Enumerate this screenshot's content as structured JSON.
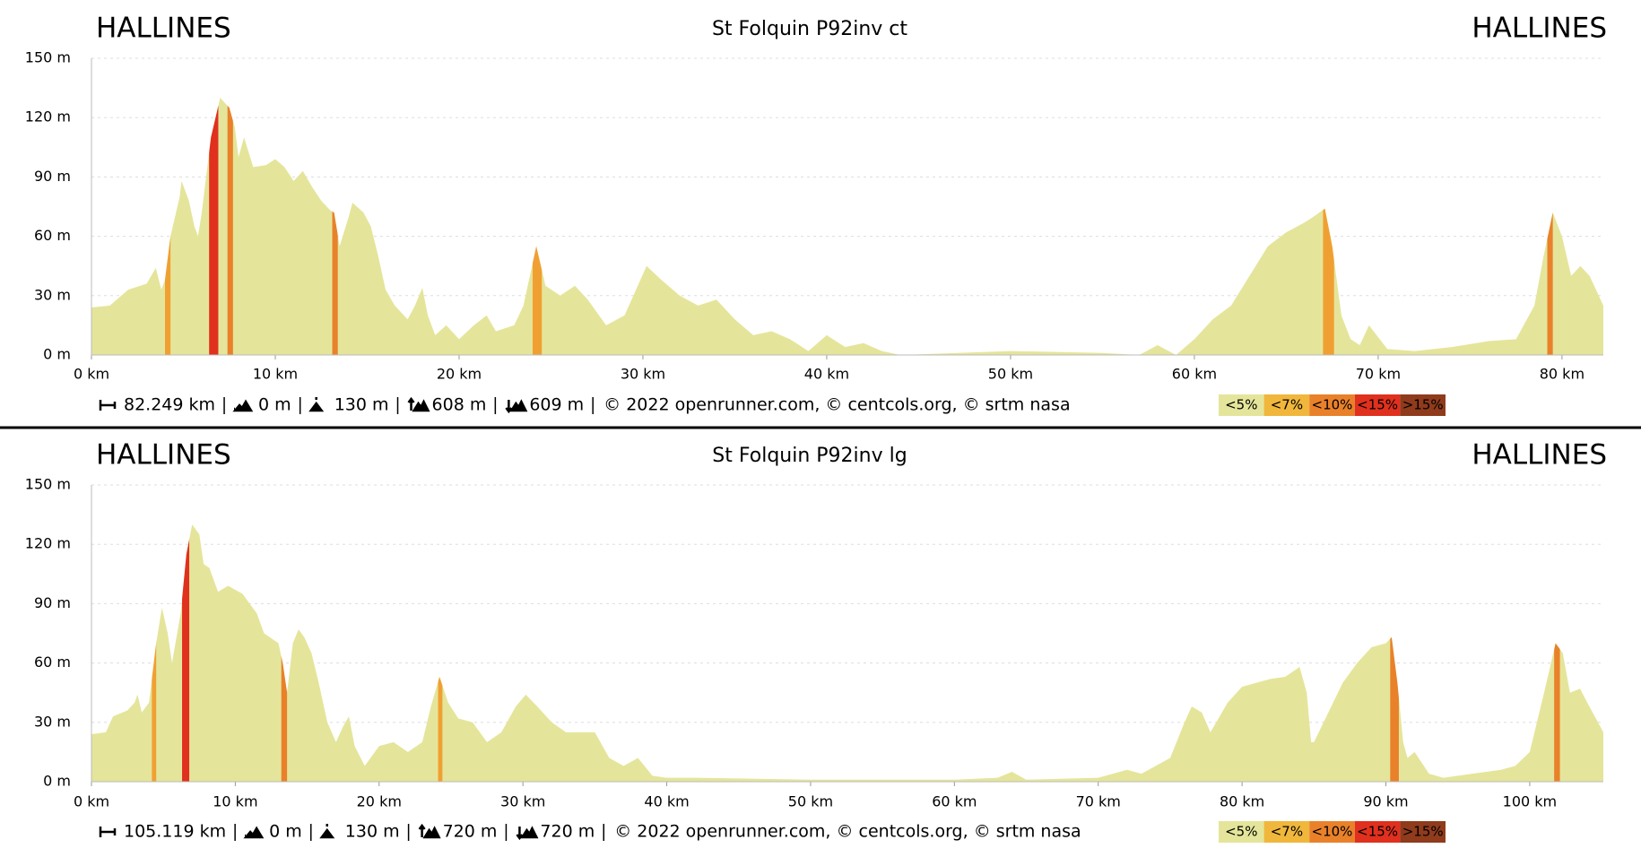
{
  "chart_data": [
    {
      "type": "area",
      "title": "St Folquin P92inv ct",
      "start_label": "HALLINES",
      "end_label": "HALLINES",
      "color": "#e4e59a",
      "x": [
        0,
        1,
        2,
        3,
        3.5,
        3.8,
        4,
        4.3,
        4.8,
        4.9,
        5.3,
        5.6,
        5.8,
        6.0,
        6.5,
        7.0,
        7.5,
        7.8,
        8.0,
        8.3,
        8.8,
        9.5,
        10,
        10.5,
        11,
        11.5,
        12,
        12.5,
        13.0,
        13.2,
        13.5,
        14.0,
        14.2,
        14.8,
        15.2,
        15.6,
        16,
        16.5,
        17.2,
        17.6,
        18,
        18.3,
        18.7,
        19.3,
        20,
        20.8,
        21.5,
        22,
        23,
        23.5,
        24.2,
        24.7,
        25.5,
        26.3,
        27,
        28,
        29,
        30.2,
        31,
        32,
        33,
        34,
        35,
        36,
        37,
        38,
        39,
        40,
        41,
        42,
        43,
        44,
        50,
        55,
        57,
        58,
        59,
        60,
        61,
        62,
        63,
        64,
        65,
        66,
        66.5,
        67.1,
        67.5,
        68,
        68.5,
        69,
        69.5,
        70.5,
        72,
        74,
        76,
        77.5,
        78.5,
        79,
        79.5,
        80,
        80.5,
        81,
        81.5,
        82.249
      ],
      "values": [
        24,
        25,
        33,
        36,
        44,
        33,
        38,
        60,
        80,
        88,
        78,
        65,
        60,
        72,
        110,
        130,
        125,
        115,
        100,
        110,
        95,
        96,
        99,
        95,
        88,
        93,
        85,
        78,
        73,
        72,
        55,
        70,
        77,
        72,
        65,
        50,
        33,
        25,
        18,
        25,
        34,
        20,
        10,
        15,
        8,
        15,
        20,
        12,
        15,
        25,
        55,
        35,
        30,
        35,
        28,
        15,
        20,
        45,
        38,
        30,
        25,
        28,
        18,
        10,
        12,
        8,
        2,
        10,
        4,
        6,
        2,
        0,
        2,
        1,
        0,
        5,
        0,
        8,
        18,
        25,
        40,
        55,
        62,
        67,
        70,
        74,
        55,
        20,
        8,
        5,
        15,
        3,
        2,
        4,
        7,
        8,
        25,
        50,
        72,
        60,
        40,
        45,
        40,
        25
      ],
      "bands": [
        {
          "x": [
            4.0,
            4.3
          ],
          "color": "#f0a032"
        },
        {
          "x": [
            6.4,
            6.9
          ],
          "color": "#e0301e"
        },
        {
          "x": [
            7.4,
            7.7
          ],
          "color": "#e9812a"
        },
        {
          "x": [
            13.1,
            13.4
          ],
          "color": "#e9812a"
        },
        {
          "x": [
            24.0,
            24.5
          ],
          "color": "#f0a032"
        },
        {
          "x": [
            67.0,
            67.6
          ],
          "color": "#f0a032"
        },
        {
          "x": [
            79.2,
            79.5
          ],
          "color": "#e9812a"
        }
      ],
      "xlim": [
        0,
        82.249
      ],
      "ylim": [
        0,
        150
      ],
      "grid": true,
      "xticks": [
        {
          "value": 0,
          "label": "0 km"
        },
        {
          "value": 10,
          "label": "10 km"
        },
        {
          "value": 20,
          "label": "20 km"
        },
        {
          "value": 30,
          "label": "30 km"
        },
        {
          "value": 40,
          "label": "40 km"
        },
        {
          "value": 50,
          "label": "50 km"
        },
        {
          "value": 60,
          "label": "60 km"
        },
        {
          "value": 70,
          "label": "70 km"
        },
        {
          "value": 80,
          "label": "80 km"
        }
      ],
      "yticks": [
        {
          "value": 0,
          "label": "0 m"
        },
        {
          "value": 30,
          "label": "30 m"
        },
        {
          "value": 60,
          "label": "60 m"
        },
        {
          "value": 90,
          "label": "90 m"
        },
        {
          "value": 120,
          "label": "120 m"
        },
        {
          "value": 150,
          "label": "150 m"
        }
      ],
      "stats": [
        "82.249 km",
        "0 m",
        "130 m",
        "608 m",
        "609 m"
      ],
      "credit": "© 2022 openrunner.com, © centcols.org, © srtm nasa",
      "legend": [
        {
          "label": "<5%",
          "color": "#e4e59a"
        },
        {
          "label": "<7%",
          "color": "#f0b73c"
        },
        {
          "label": "<10%",
          "color": "#e9812a"
        },
        {
          "label": "<15%",
          "color": "#e0301e"
        },
        {
          "label": ">15%",
          "color": "#8f3b1c"
        }
      ]
    },
    {
      "type": "area",
      "title": "St Folquin P92inv lg",
      "start_label": "HALLINES",
      "end_label": "HALLINES",
      "color": "#e4e59a",
      "x": [
        0,
        1,
        1.5,
        2.5,
        3,
        3.2,
        3.5,
        4.0,
        4.5,
        4.9,
        5.3,
        5.6,
        6.2,
        6.6,
        7.0,
        7.5,
        7.8,
        8.2,
        8.8,
        9.5,
        10.5,
        11,
        11.5,
        12,
        13,
        13.3,
        13.6,
        14,
        14.4,
        14.8,
        15.3,
        15.8,
        16.4,
        17,
        17.5,
        17.9,
        18.3,
        19,
        20,
        21,
        22,
        23,
        23.6,
        24.2,
        24.8,
        25.5,
        26.5,
        27.5,
        28.5,
        29.5,
        30.2,
        31,
        32,
        33,
        34,
        35,
        36,
        37,
        38,
        39,
        40,
        42,
        50,
        60,
        63,
        64,
        65,
        70,
        72,
        73,
        74,
        75,
        76,
        76.5,
        77.2,
        77.8,
        79,
        80,
        81,
        82,
        83,
        84,
        84.5,
        84.8,
        85,
        86,
        87,
        88,
        89,
        90,
        90.4,
        90.8,
        91.2,
        91.5,
        92,
        93,
        94,
        96,
        98,
        99,
        100,
        101,
        101.8,
        102.3,
        102.8,
        103.5,
        104,
        105.119
      ],
      "values": [
        24,
        25,
        33,
        36,
        40,
        44,
        35,
        40,
        70,
        88,
        75,
        60,
        85,
        115,
        130,
        125,
        110,
        108,
        96,
        99,
        95,
        90,
        85,
        75,
        70,
        60,
        45,
        70,
        77,
        73,
        65,
        50,
        30,
        20,
        28,
        33,
        18,
        8,
        18,
        20,
        15,
        20,
        38,
        53,
        40,
        32,
        30,
        20,
        25,
        38,
        44,
        38,
        30,
        25,
        25,
        25,
        12,
        8,
        12,
        3,
        2,
        2,
        1,
        1,
        2,
        5,
        1,
        2,
        6,
        4,
        8,
        12,
        30,
        38,
        35,
        25,
        40,
        48,
        50,
        52,
        53,
        58,
        45,
        20,
        20,
        35,
        50,
        60,
        68,
        70,
        73,
        50,
        20,
        12,
        15,
        4,
        2,
        4,
        6,
        8,
        15,
        45,
        70,
        65,
        45,
        47,
        40,
        25
      ],
      "bands": [
        {
          "x": [
            4.2,
            4.5
          ],
          "color": "#f0a032"
        },
        {
          "x": [
            6.3,
            6.8
          ],
          "color": "#e0301e"
        },
        {
          "x": [
            13.2,
            13.6
          ],
          "color": "#e9812a"
        },
        {
          "x": [
            24.1,
            24.4
          ],
          "color": "#f0a032"
        },
        {
          "x": [
            90.3,
            90.9
          ],
          "color": "#e9812a"
        },
        {
          "x": [
            101.7,
            102.1
          ],
          "color": "#e9812a"
        }
      ],
      "xlim": [
        0,
        105.119
      ],
      "ylim": [
        0,
        150
      ],
      "grid": true,
      "xticks": [
        {
          "value": 0,
          "label": "0 km"
        },
        {
          "value": 10,
          "label": "10 km"
        },
        {
          "value": 20,
          "label": "20 km"
        },
        {
          "value": 30,
          "label": "30 km"
        },
        {
          "value": 40,
          "label": "40 km"
        },
        {
          "value": 50,
          "label": "50 km"
        },
        {
          "value": 60,
          "label": "60 km"
        },
        {
          "value": 70,
          "label": "70 km"
        },
        {
          "value": 80,
          "label": "80 km"
        },
        {
          "value": 90,
          "label": "90 km"
        },
        {
          "value": 100,
          "label": "100 km"
        }
      ],
      "yticks": [
        {
          "value": 0,
          "label": "0 m"
        },
        {
          "value": 30,
          "label": "30 m"
        },
        {
          "value": 60,
          "label": "60 m"
        },
        {
          "value": 90,
          "label": "90 m"
        },
        {
          "value": 120,
          "label": "120 m"
        },
        {
          "value": 150,
          "label": "150 m"
        }
      ],
      "stats": [
        "105.119 km",
        "0 m",
        "130 m",
        "720 m",
        "720 m"
      ],
      "credit": "© 2022 openrunner.com, © centcols.org, © srtm nasa",
      "legend": [
        {
          "label": "<5%",
          "color": "#e4e59a"
        },
        {
          "label": "<7%",
          "color": "#f0b73c"
        },
        {
          "label": "<10%",
          "color": "#e9812a"
        },
        {
          "label": "<15%",
          "color": "#e0301e"
        },
        {
          "label": ">15%",
          "color": "#8f3b1c"
        }
      ]
    }
  ]
}
